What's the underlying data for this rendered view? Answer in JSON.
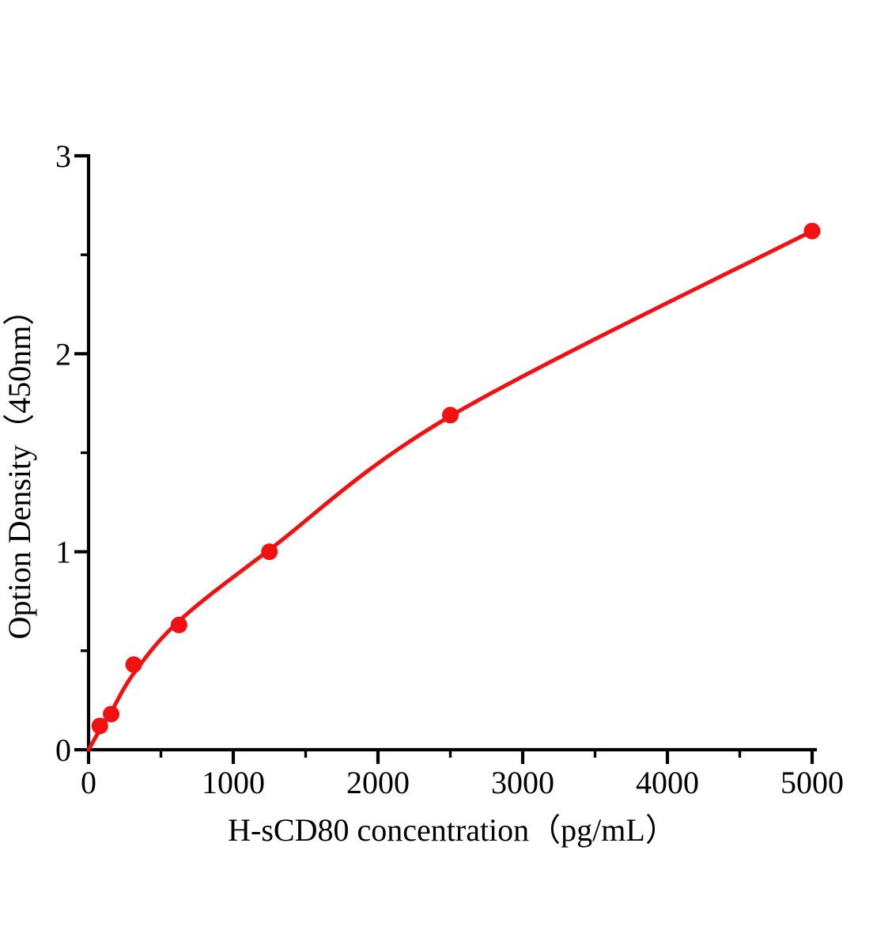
{
  "page": {
    "background": "#ffffff",
    "axis_color": "#000000",
    "accent_color": "#f11113"
  },
  "chart_data": {
    "type": "scatter",
    "title": "",
    "xlabel": "H-sCD80 concentration（pg/mL）",
    "ylabel": "Option Density（450nm）",
    "xlim": [
      0,
      5100
    ],
    "ylim": [
      0,
      3
    ],
    "grid": false,
    "legend": "none",
    "x_major_ticks": [
      0,
      1000,
      2000,
      3000,
      4000,
      5000
    ],
    "x_minor_ticks": [
      500,
      1500,
      2500,
      3500,
      4500
    ],
    "x_tick_labels": [
      "0",
      "1000",
      "2000",
      "3000",
      "4000",
      "5000"
    ],
    "y_major_ticks": [
      0,
      1,
      2,
      3
    ],
    "y_minor_ticks": [
      0.5,
      1.5,
      2.5
    ],
    "y_tick_labels": [
      "0",
      "1",
      "2",
      "3"
    ],
    "series": [
      {
        "name": "standard-points",
        "type": "scatter",
        "color": "#f11113",
        "marker": "circle",
        "points": [
          {
            "x": 78,
            "y": 0.12
          },
          {
            "x": 156,
            "y": 0.18
          },
          {
            "x": 312,
            "y": 0.43
          },
          {
            "x": 625,
            "y": 0.63
          },
          {
            "x": 1250,
            "y": 1.0
          },
          {
            "x": 2500,
            "y": 1.69
          },
          {
            "x": 5000,
            "y": 2.62
          }
        ]
      },
      {
        "name": "fitted-curve",
        "type": "line",
        "color": "#f11113",
        "points": [
          {
            "x": 0,
            "y": 0.0
          },
          {
            "x": 78,
            "y": 0.1
          },
          {
            "x": 156,
            "y": 0.19
          },
          {
            "x": 312,
            "y": 0.385
          },
          {
            "x": 625,
            "y": 0.65
          },
          {
            "x": 1250,
            "y": 1.01
          },
          {
            "x": 2500,
            "y": 1.685
          },
          {
            "x": 5000,
            "y": 2.62
          }
        ]
      }
    ]
  }
}
